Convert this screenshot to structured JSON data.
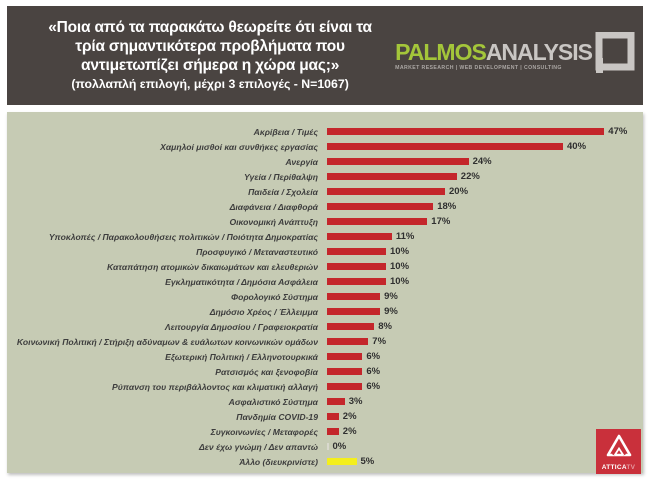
{
  "header": {
    "question_lines": [
      "«Ποια από τα παρακάτω θεωρείτε ότι είναι τα",
      "τρία σημαντικότερα προβλήματα που",
      "αντιμετωπίζει σήμερα η χώρα μας;»"
    ],
    "subtitle": "(πολλαπλή επιλογή, μέχρι 3 επιλογές - N=1067)",
    "logo": {
      "word_part1": "PALMOS",
      "word_part2": "ANALYSIS",
      "tagline": "MARKET RESEARCH | WEB DEVELOPMENT | CONSULTING"
    }
  },
  "chart_data": {
    "type": "bar",
    "orientation": "horizontal",
    "title": "«Ποια από τα παρακάτω θεωρείτε ότι είναι τα τρία σημαντικότερα προβλήματα που αντιμετωπίζει σήμερα η χώρα μας;» (πολλαπλή επιλογή, μέχρι 3 επιλογές - N=1067)",
    "xlabel": "",
    "ylabel": "",
    "xlim": [
      0,
      50
    ],
    "grid": false,
    "legend": false,
    "categories": [
      "Ακρίβεια / Τιμές",
      "Χαμηλοί μισθοί και συνθήκες εργασίας",
      "Ανεργία",
      "Υγεία / Περίθαλψη",
      "Παιδεία / Σχολεία",
      "Διαφάνεια / Διαφθορά",
      "Οικονομική Ανάπτυξη",
      "Υποκλοπές / Παρακολουθήσεις πολιτικών / Ποιότητα Δημοκρατίας",
      "Προσφυγικό / Μεταναστευτικό",
      "Καταπάτηση ατομικών δικαιωμάτων και ελευθεριών",
      "Εγκληματικότητα / Δημόσια Ασφάλεια",
      "Φορολογικό Σύστημα",
      "Δημόσιο Χρέος / Έλλειμμα",
      "Λειτουργία Δημοσίου / Γραφειοκρατία",
      "Κοινωνική Πολιτική / Στήριξη αδύναμων & ευάλωτων κοινωνικών ομάδων",
      "Εξωτερική Πολιτική / Ελληνοτουρκικά",
      "Ρατσισμός και ξενοφοβία",
      "Ρύπανση του περιβάλλοντος και κλιματική αλλαγή",
      "Ασφαλιστικό Σύστημα",
      "Πανδημία COVID-19",
      "Συγκοινωνίες / Μεταφορές",
      "Δεν έχω γνώμη / Δεν απαντώ",
      "Άλλο (διευκρινίστε)"
    ],
    "values": [
      47,
      40,
      24,
      22,
      20,
      18,
      17,
      11,
      10,
      10,
      10,
      9,
      9,
      8,
      7,
      6,
      6,
      6,
      3,
      2,
      2,
      0,
      5
    ],
    "value_labels": [
      "47%",
      "40%",
      "24%",
      "22%",
      "20%",
      "18%",
      "17%",
      "11%",
      "10%",
      "10%",
      "10%",
      "9%",
      "9%",
      "8%",
      "7%",
      "6%",
      "6%",
      "6%",
      "3%",
      "2%",
      "2%",
      "0%",
      "5%"
    ],
    "bar_colors": [
      "#c4262b",
      "#c4262b",
      "#c4262b",
      "#c4262b",
      "#c4262b",
      "#c4262b",
      "#c4262b",
      "#c4262b",
      "#c4262b",
      "#c4262b",
      "#c4262b",
      "#c4262b",
      "#c4262b",
      "#c4262b",
      "#c4262b",
      "#c4262b",
      "#c4262b",
      "#c4262b",
      "#c4262b",
      "#c4262b",
      "#c4262b",
      "#d9d9ce",
      "#f4ef1c"
    ]
  },
  "footer_logo": {
    "brand": "ATTICA",
    "suffix": "TV"
  },
  "colors": {
    "header_bg": "#4a4441",
    "panel_bg": "#c6cbb4",
    "bar_red": "#c4262b",
    "bar_yellow": "#f4ef1c",
    "logo_green": "#a4c63a",
    "logo_silver": "#c9c6c3",
    "attica_red": "#c9303b",
    "label_text": "#3d3d3d"
  }
}
